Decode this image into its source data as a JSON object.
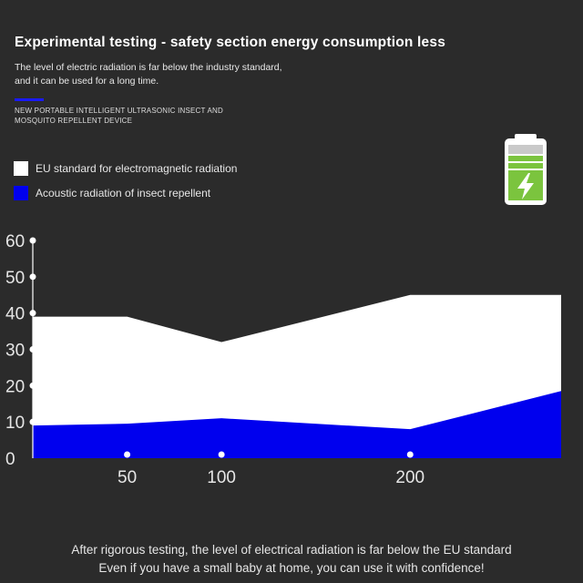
{
  "header": {
    "title": "Experimental testing - safety section energy consumption less",
    "subtitle_line1": "The level of electric radiation is far below the industry standard,",
    "subtitle_line2": "and it can be used for a long time.",
    "product_line1": "NEW PORTABLE INTELLIGENT ULTRASONIC INSECT AND",
    "product_line2": "MOSQUITO  REPELLENT DEVICE",
    "accent_color": "#1a1aff"
  },
  "battery": {
    "icon": "battery-charging-icon",
    "level": 1.0,
    "color": "#7bc43e"
  },
  "chart_data": {
    "type": "area",
    "x": [
      0,
      50,
      100,
      200,
      280
    ],
    "xticks": [
      50,
      100,
      200
    ],
    "xlim": [
      0,
      280
    ],
    "yticks": [
      0,
      10,
      20,
      30,
      40,
      50,
      60
    ],
    "ylim": [
      0,
      60
    ],
    "grid": false,
    "legend": "top-left",
    "series": [
      {
        "name": "EU standard for electromagnetic radiation",
        "color": "#ffffff",
        "values": [
          39,
          39,
          32,
          45,
          45
        ]
      },
      {
        "name": "Acoustic radiation of insect repellent",
        "color": "#0000ee",
        "values": [
          9,
          9.5,
          11,
          8,
          18.5
        ]
      }
    ]
  },
  "footer": {
    "line1": "After rigorous testing, the level of electrical radiation is far below the EU standard",
    "line2": "Even if you have a small baby at home, you can use it with confidence!"
  }
}
